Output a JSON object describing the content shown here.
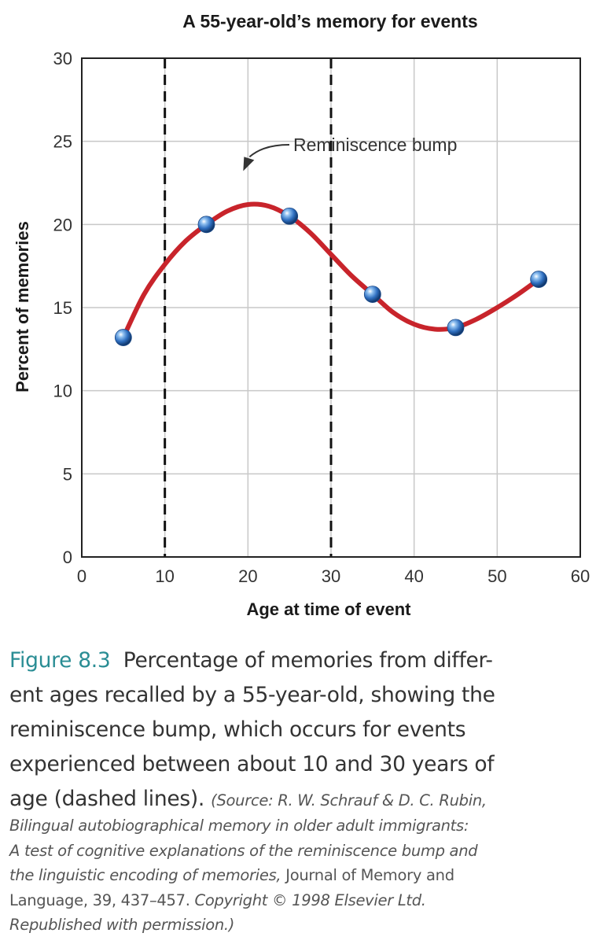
{
  "chart_data": {
    "type": "line",
    "title": "A 55-year-old’s memory for events",
    "xlabel": "Age at time of event",
    "ylabel": "Percent of memories",
    "xlim": [
      0,
      60
    ],
    "ylim": [
      0,
      30
    ],
    "x_ticks": [
      0,
      10,
      20,
      30,
      40,
      50,
      60
    ],
    "y_ticks": [
      0,
      5,
      10,
      15,
      20,
      25,
      30
    ],
    "grid": true,
    "points": [
      {
        "x": 5,
        "y": 13.2
      },
      {
        "x": 15,
        "y": 20.0
      },
      {
        "x": 25,
        "y": 20.5
      },
      {
        "x": 35,
        "y": 15.8
      },
      {
        "x": 45,
        "y": 13.8
      },
      {
        "x": 55,
        "y": 16.7
      }
    ],
    "curve": [
      {
        "x": 5,
        "y": 13.2
      },
      {
        "x": 7.5,
        "y": 15.8
      },
      {
        "x": 10,
        "y": 17.6
      },
      {
        "x": 12.5,
        "y": 19.0
      },
      {
        "x": 15,
        "y": 20.0
      },
      {
        "x": 17.5,
        "y": 20.8
      },
      {
        "x": 20,
        "y": 21.2
      },
      {
        "x": 22.5,
        "y": 21.1
      },
      {
        "x": 25,
        "y": 20.5
      },
      {
        "x": 27.5,
        "y": 19.5
      },
      {
        "x": 30,
        "y": 18.2
      },
      {
        "x": 32.5,
        "y": 16.9
      },
      {
        "x": 35,
        "y": 15.8
      },
      {
        "x": 37.5,
        "y": 14.7
      },
      {
        "x": 40,
        "y": 14.0
      },
      {
        "x": 42.5,
        "y": 13.7
      },
      {
        "x": 45,
        "y": 13.8
      },
      {
        "x": 47.5,
        "y": 14.3
      },
      {
        "x": 50,
        "y": 15.0
      },
      {
        "x": 52.5,
        "y": 15.8
      },
      {
        "x": 55,
        "y": 16.7
      }
    ],
    "dashed_lines_x": [
      10,
      30
    ],
    "annotation": {
      "text": "Reminiscence bump",
      "arrow_target": {
        "x": 20,
        "y": 23.5
      }
    },
    "colors": {
      "curve": "#c8242b",
      "marker": "#2f6fc0",
      "grid": "#c8c8c8",
      "dashed": "#111111"
    }
  },
  "caption": {
    "figure_label": "Figure 8.3",
    "lines": [
      "Percentage of memories from differ-",
      "ent ages recalled by a 55-year-old, showing the",
      "reminiscence bump, which occurs for events",
      "experienced between about 10 and 30 years of"
    ],
    "last_line": "age (dashed lines).",
    "source_first": "(Source: R. W. Schrauf & D. C. Rubin,",
    "source_lines": [
      "Bilingual autobiographical memory in older adult immigrants:",
      "A test of cognitive explanations of the reminiscence bump and",
      "the linguistic encoding of memories,"
    ],
    "journal": "Journal of Memory and",
    "journal_line2": "Language, 39, 437–457.",
    "copyright": "Copyright © 1998 Elsevier Ltd.",
    "permission": "Republished with permission.)"
  }
}
